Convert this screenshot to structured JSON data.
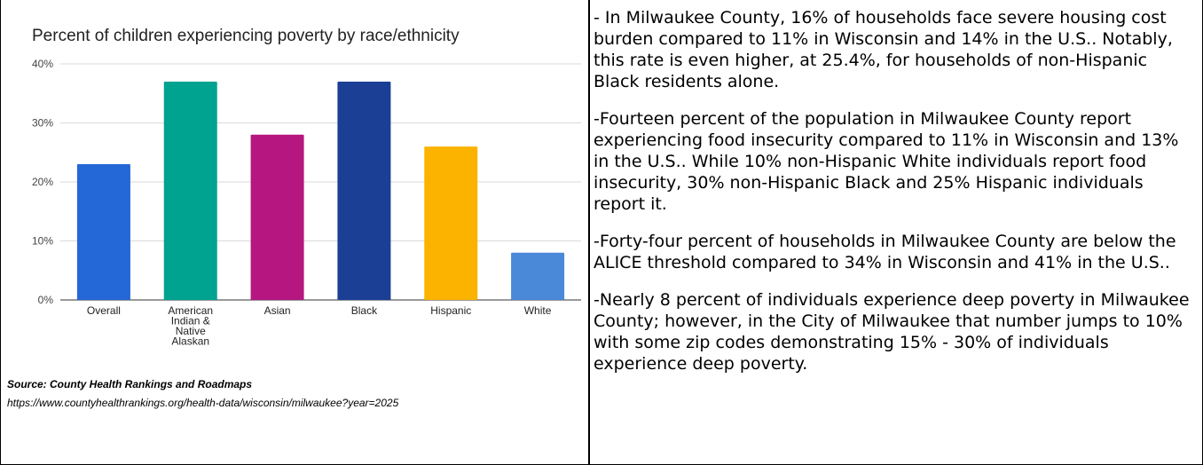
{
  "chart_data": {
    "type": "bar",
    "title": "Percent of children experiencing poverty by race/ethnicity",
    "categories": [
      "Overall",
      "American Indian & Native Alaskan",
      "Asian",
      "Black",
      "Hispanic",
      "White"
    ],
    "category_lines": [
      [
        "Overall"
      ],
      [
        "American",
        "Indian &",
        "Native",
        "Alaskan"
      ],
      [
        "Asian"
      ],
      [
        "Black"
      ],
      [
        "Hispanic"
      ],
      [
        "White"
      ]
    ],
    "values": [
      23,
      37,
      28,
      37,
      26,
      8
    ],
    "colors": [
      "#2467d6",
      "#00a38f",
      "#b5167f",
      "#1a3f94",
      "#fbb300",
      "#4a88d8"
    ],
    "ylim": [
      0,
      40
    ],
    "yticks": [
      0,
      10,
      20,
      30,
      40
    ],
    "ytick_labels": [
      "0%",
      "10%",
      "20%",
      "30%",
      "40%"
    ],
    "grid": true,
    "legend": "none"
  },
  "source": {
    "label": "Source: County Health Rankings and Roadmaps",
    "url": "https://www.countyhealthrankings.org/health-data/wisconsin/milwaukee?year=2025"
  },
  "paragraphs": [
    "- In Milwaukee County, 16% of households face severe housing cost burden compared to 11% in Wisconsin and 14% in the U.S.. Notably, this rate is even higher, at 25.4%, for  households of non-Hispanic Black residents alone.",
    "-Fourteen percent of the population in Milwaukee County report experiencing food insecurity compared to 11% in Wisconsin and 13% in the U.S.. While 10% non-Hispanic White individuals report food insecurity, 30% non-Hispanic Black and 25% Hispanic individuals report it.",
    "-Forty-four percent of households in Milwaukee County are below the ALICE threshold compared to 34% in Wisconsin and 41% in the U.S..",
    "-Nearly 8 percent of individuals experience deep poverty in Milwaukee County; however, in the City of Milwaukee that number jumps to 10% with some zip codes demonstrating 15% - 30% of individuals experience deep poverty."
  ]
}
